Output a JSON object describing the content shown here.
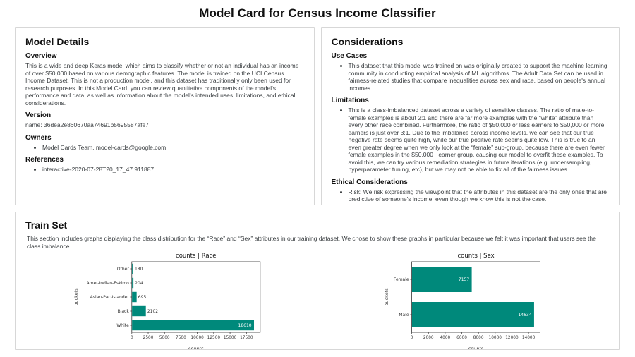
{
  "page_title": "Model Card for Census Income Classifier",
  "model_details": {
    "title": "Model Details",
    "overview_heading": "Overview",
    "overview_text": "This is a wide and deep Keras model which aims to classify whether or not an individual has an income of over $50,000 based on various demographic features. The model is trained on the UCI Census Income Dataset. This is not a production model, and this dataset has traditionally only been used for research purposes. In this Model Card, you can review quantitative components of the model's performance and data, as well as information about the model's intended uses, limitations, and ethical considerations.",
    "version_heading": "Version",
    "version_text": "name: 36dea2e860670aa74691b5695587afe7",
    "owners_heading": "Owners",
    "owners_items": [
      "Model Cards Team, model-cards@google.com"
    ],
    "references_heading": "References",
    "references_items": [
      "interactive-2020-07-28T20_17_47.911887"
    ]
  },
  "considerations": {
    "title": "Considerations",
    "use_cases_heading": "Use Cases",
    "use_cases_items": [
      "This dataset that this model was trained on was originally created to support the machine learning community in conducting empirical analysis of ML algorithms. The Adult Data Set can be used in fairness-related studies that compare inequalities across sex and race, based on people's annual incomes."
    ],
    "limitations_heading": "Limitations",
    "limitations_items": [
      "This is a class-imbalanced dataset across a variety of sensitive classes. The ratio of male-to-female examples is about 2:1 and there are far more examples with the “white” attribute than every other race combined. Furthermore, the ratio of $50,000 or less earners to $50,000 or more earners is just over 3:1. Due to the imbalance across income levels, we can see that our true negative rate seems quite high, while our true positive rate seems quite low. This is true to an even greater degree when we only look at the “female” sub-group, because there are even fewer female examples in the $50,000+ earner group, causing our model to overfit these examples. To avoid this, we can try various remediation strategies in future iterations (e.g. undersampling, hyperparameter tuning, etc), but we may not be able to fix all of the fairness issues."
    ],
    "ethical_heading": "Ethical Considerations",
    "ethical_items": [
      "Risk: We risk expressing the viewpoint that the attributes in this dataset are the only ones that are predictive of someone's income, even though we know this is not the case.\nMitigation Strategy: As mentioned, some interventions may need to be performed to address the class imbalances in the dataset."
    ]
  },
  "train_set": {
    "title": "Train Set",
    "description": "This section includes graphs displaying the class distribution for the “Race” and “Sex” attributes in our training dataset. We chose to show these graphs in particular because we felt it was important that users see the class imbalance."
  },
  "chart_data": [
    {
      "type": "bar",
      "orientation": "horizontal",
      "title": "counts | Race",
      "categories": [
        "Other",
        "Amer-Indian-Eskimo",
        "Asian-Pac-Islander",
        "Black",
        "White"
      ],
      "values": [
        180,
        204,
        695,
        2102,
        18610
      ],
      "xlabel": "counts",
      "ylabel": "buckets",
      "xlim": [
        0,
        19600
      ],
      "xticks": [
        0,
        2500,
        5000,
        7500,
        10000,
        12500,
        15000,
        17500
      ],
      "grid": false,
      "legend": "none",
      "bar_color": "#00897b"
    },
    {
      "type": "bar",
      "orientation": "horizontal",
      "title": "counts | Sex",
      "categories": [
        "Female",
        "Male"
      ],
      "values": [
        7157,
        14634
      ],
      "xlabel": "counts",
      "ylabel": "buckets",
      "xlim": [
        0,
        15400
      ],
      "xticks": [
        0,
        2000,
        4000,
        6000,
        8000,
        10000,
        12000,
        14000
      ],
      "grid": false,
      "legend": "none",
      "bar_color": "#00897b"
    }
  ],
  "colors": {
    "bar": "#00897b",
    "card_border": "#d7d7d7",
    "heading": "#111111",
    "body_text": "#3c4043"
  }
}
